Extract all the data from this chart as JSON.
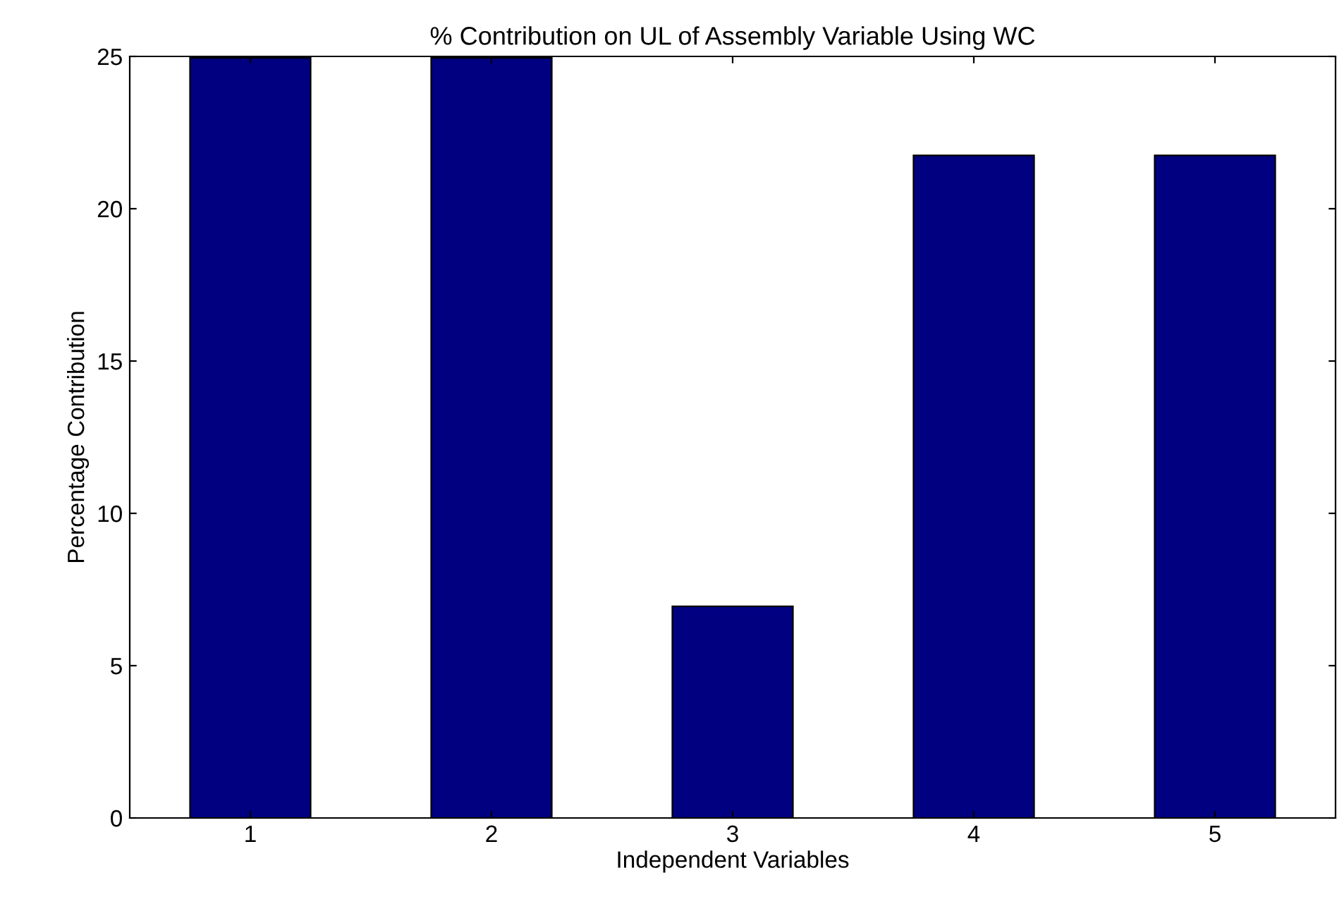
{
  "chart_data": {
    "type": "bar",
    "title": "% Contribution on UL of Assembly Variable Using WC",
    "xlabel": "Independent Variables",
    "ylabel": "Percentage Contribution",
    "categories": [
      "1",
      "2",
      "3",
      "4",
      "5"
    ],
    "values": [
      24.95,
      24.95,
      6.95,
      21.75,
      21.75
    ],
    "color": "#000080",
    "ylim": [
      0,
      25
    ],
    "yticks": [
      0,
      5,
      10,
      15,
      20,
      25
    ],
    "grid": false
  }
}
